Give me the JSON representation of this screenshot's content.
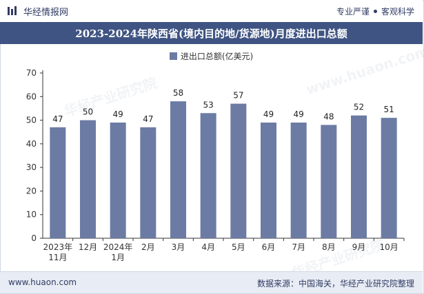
{
  "header": {
    "brand": "华经情报网",
    "tag1": "专业严谨",
    "tag2": "客观科学"
  },
  "footer": {
    "site": "www.huaon.com",
    "source": "数据来源：中国海关，华经产业研究院整理"
  },
  "watermark": {
    "text": "华经产业研究院",
    "url": "www.huaon.com"
  },
  "colors": {
    "bar": "#6b7ba4",
    "title_bg": "#3f5483",
    "axis": "#333333"
  },
  "chart_data": {
    "type": "bar",
    "title": "2023-2024年陕西省(境内目的地/货源地)月度进出口总额",
    "legend": "进出口总额(亿美元)",
    "categories": [
      [
        "2023年",
        "11月"
      ],
      [
        "12月"
      ],
      [
        "2024年",
        "1月"
      ],
      [
        "2月"
      ],
      [
        "3月"
      ],
      [
        "4月"
      ],
      [
        "5月"
      ],
      [
        "6月"
      ],
      [
        "7月"
      ],
      [
        "8月"
      ],
      [
        "9月"
      ],
      [
        "10月"
      ]
    ],
    "series": [
      {
        "name": "进出口总额(亿美元)",
        "values": [
          47,
          50,
          49,
          47,
          58,
          53,
          57,
          49,
          49,
          48,
          52,
          51
        ]
      }
    ],
    "ylim": [
      0,
      70
    ],
    "yticks": [
      0,
      10,
      20,
      30,
      40,
      50,
      60,
      70
    ],
    "xlabel": "",
    "ylabel": ""
  }
}
